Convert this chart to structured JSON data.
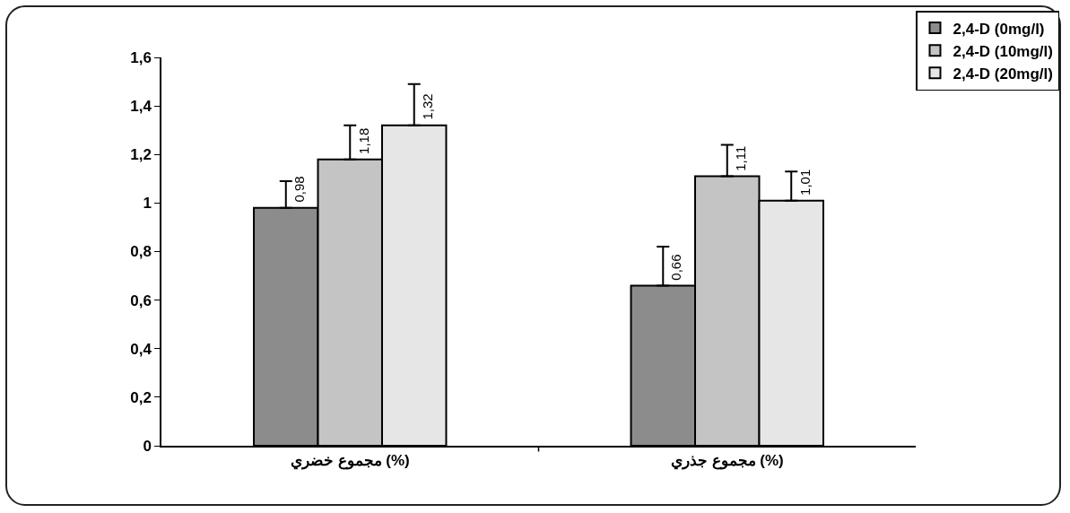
{
  "chart_data": {
    "type": "bar",
    "categories": [
      "مجموع خضري (%)",
      "مجموع جذري (%)"
    ],
    "series": [
      {
        "name": "2,4-D (0mg/l)",
        "color": "#8c8c8c",
        "values": [
          0.98,
          0.66
        ],
        "errors": [
          [
            0.98,
            1.09
          ],
          [
            0.66,
            0.82
          ]
        ],
        "value_labels": [
          "0,98",
          "0,66"
        ]
      },
      {
        "name": "2,4-D (10mg/l)",
        "color": "#c4c4c4",
        "values": [
          1.18,
          1.11
        ],
        "errors": [
          [
            1.18,
            1.32
          ],
          [
            1.11,
            1.24
          ]
        ],
        "value_labels": [
          "1,18",
          "1,11"
        ]
      },
      {
        "name": "2,4-D (20mg/l)",
        "color": "#e6e6e6",
        "values": [
          1.32,
          1.01
        ],
        "errors": [
          [
            1.32,
            1.49
          ],
          [
            1.01,
            1.13
          ]
        ],
        "value_labels": [
          "1,32",
          "1,01"
        ]
      }
    ],
    "ylim": [
      0,
      1.6
    ],
    "yticks": [
      0,
      {
        "value": 0.2,
        "label": "0,2"
      },
      {
        "value": 0.4,
        "label": "0,4"
      },
      {
        "value": 0.6,
        "label": "0,6"
      },
      {
        "value": 0.8,
        "label": "0,8"
      },
      1,
      {
        "value": 1.2,
        "label": "1,2"
      },
      {
        "value": 1.4,
        "label": "1,4"
      },
      {
        "value": 1.6,
        "label": "1,6"
      }
    ],
    "grid": false,
    "legend": "top right"
  }
}
